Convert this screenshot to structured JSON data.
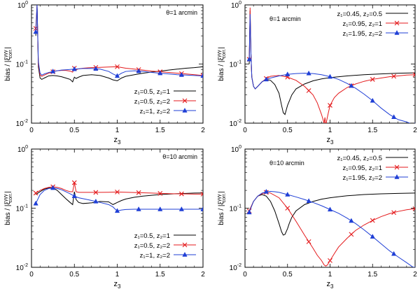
{
  "chart_data": [
    {
      "type": "line",
      "annotation": "θ=1 arcmin",
      "ylabel": "bias / |ξ",
      "ylabel_sup": "γγγ",
      "ylabel_sub": "corr.",
      "ylabel_end": "|",
      "xlabel": "z",
      "xlabel_sub": "3",
      "xlim": [
        0,
        2
      ],
      "ylim_log10": [
        -2,
        0
      ],
      "xticks": [
        "0",
        "0.5",
        "1",
        "1.5",
        "2"
      ],
      "yticks": [
        "10",
        "10",
        "10"
      ],
      "ytick_exps": [
        "-2",
        "-1",
        "0"
      ],
      "legend_position": "bottom-right",
      "series": [
        {
          "name": "z₁=0.5, z₂=1",
          "color": "#000000",
          "marker": "none",
          "x": [
            0.05,
            0.065,
            0.08,
            0.1,
            0.12,
            0.15,
            0.2,
            0.25,
            0.3,
            0.35,
            0.4,
            0.45,
            0.48,
            0.5,
            0.52,
            0.55,
            0.6,
            0.7,
            0.8,
            0.9,
            0.95,
            1.0,
            1.05,
            1.1,
            1.2,
            1.3,
            1.4,
            1.5,
            1.6,
            1.7,
            1.8,
            1.9,
            2.0
          ],
          "y": [
            0.3,
            1.0,
            0.09,
            0.058,
            0.055,
            0.058,
            0.063,
            0.064,
            0.063,
            0.061,
            0.058,
            0.055,
            0.05,
            0.06,
            0.057,
            0.06,
            0.064,
            0.066,
            0.064,
            0.058,
            0.054,
            0.052,
            0.058,
            0.062,
            0.066,
            0.07,
            0.073,
            0.076,
            0.079,
            0.082,
            0.085,
            0.087,
            0.09
          ]
        },
        {
          "name": "z₁=0.5, z₂=2",
          "color": "#e41a1c",
          "marker": "x",
          "x": [
            0.05,
            0.065,
            0.08,
            0.1,
            0.12,
            0.15,
            0.2,
            0.25,
            0.3,
            0.35,
            0.4,
            0.45,
            0.48,
            0.5,
            0.52,
            0.55,
            0.6,
            0.7,
            0.8,
            0.9,
            1.0,
            1.1,
            1.2,
            1.3,
            1.4,
            1.5,
            1.6,
            1.7,
            1.8,
            1.9,
            2.0
          ],
          "y": [
            0.4,
            1.0,
            0.1,
            0.065,
            0.062,
            0.065,
            0.07,
            0.074,
            0.077,
            0.078,
            0.078,
            0.076,
            0.073,
            0.085,
            0.08,
            0.083,
            0.085,
            0.087,
            0.088,
            0.089,
            0.09,
            0.085,
            0.082,
            0.079,
            0.076,
            0.074,
            0.072,
            0.07,
            0.068,
            0.066,
            0.064
          ]
        },
        {
          "name": "z₁=1, z₂=2",
          "color": "#1f3fd6",
          "marker": "triangle",
          "x": [
            0.05,
            0.065,
            0.08,
            0.1,
            0.12,
            0.15,
            0.2,
            0.25,
            0.3,
            0.35,
            0.4,
            0.45,
            0.5,
            0.55,
            0.6,
            0.7,
            0.8,
            0.9,
            0.95,
            1.0,
            1.05,
            1.1,
            1.2,
            1.3,
            1.4,
            1.5,
            1.6,
            1.7,
            1.8,
            1.9,
            2.0
          ],
          "y": [
            0.35,
            1.0,
            0.11,
            0.07,
            0.065,
            0.068,
            0.072,
            0.075,
            0.077,
            0.079,
            0.08,
            0.081,
            0.082,
            0.083,
            0.084,
            0.084,
            0.082,
            0.075,
            0.068,
            0.063,
            0.07,
            0.075,
            0.077,
            0.075,
            0.072,
            0.07,
            0.068,
            0.066,
            0.065,
            0.064,
            0.063
          ]
        }
      ]
    },
    {
      "type": "line",
      "annotation": "θ=1 arcmin",
      "ylabel": "bias / |ξ",
      "ylabel_sup": "γγγ",
      "ylabel_sub": "corr.",
      "ylabel_end": "|",
      "xlabel": "z",
      "xlabel_sub": "3",
      "xlim": [
        0,
        2
      ],
      "ylim_log10": [
        -2,
        0
      ],
      "xticks": [
        "0",
        "0.5",
        "1",
        "1.5",
        "2"
      ],
      "yticks": [
        "10",
        "10",
        "10"
      ],
      "ytick_exps": [
        "-2",
        "-1",
        "0"
      ],
      "legend_position": "top-right",
      "series": [
        {
          "name": "z₁=0.45, z₂=0.5",
          "color": "#000000",
          "marker": "none",
          "x": [
            0.05,
            0.06,
            0.07,
            0.08,
            0.1,
            0.12,
            0.15,
            0.2,
            0.25,
            0.3,
            0.35,
            0.4,
            0.43,
            0.45,
            0.47,
            0.5,
            0.55,
            0.6,
            0.7,
            0.8,
            0.9,
            1.0,
            1.2,
            1.4,
            1.6,
            1.8,
            2.0
          ],
          "y": [
            0.1,
            0.8,
            0.15,
            0.06,
            0.042,
            0.038,
            0.042,
            0.05,
            0.055,
            0.053,
            0.045,
            0.032,
            0.02,
            0.015,
            0.014,
            0.02,
            0.03,
            0.038,
            0.046,
            0.052,
            0.056,
            0.059,
            0.063,
            0.066,
            0.068,
            0.07,
            0.071
          ]
        },
        {
          "name": "z₁=0.95, z₂=1",
          "color": "#e41a1c",
          "marker": "x",
          "x": [
            0.05,
            0.06,
            0.07,
            0.08,
            0.1,
            0.12,
            0.15,
            0.2,
            0.25,
            0.3,
            0.4,
            0.5,
            0.6,
            0.7,
            0.8,
            0.85,
            0.9,
            0.93,
            0.94,
            0.95,
            0.96,
            0.98,
            1.0,
            1.05,
            1.1,
            1.2,
            1.3,
            1.4,
            1.5,
            1.6,
            1.7,
            1.8,
            1.9,
            2.0
          ],
          "y": [
            0.12,
            0.9,
            0.15,
            0.06,
            0.042,
            0.038,
            0.042,
            0.05,
            0.057,
            0.062,
            0.064,
            0.06,
            0.053,
            0.042,
            0.03,
            0.022,
            0.014,
            0.01,
            0.0125,
            0.009,
            0.011,
            0.015,
            0.02,
            0.027,
            0.032,
            0.04,
            0.046,
            0.051,
            0.055,
            0.058,
            0.061,
            0.063,
            0.065,
            0.066
          ]
        },
        {
          "name": "z₁=1.95, z₂=2",
          "color": "#1f3fd6",
          "marker": "triangle",
          "x": [
            0.05,
            0.06,
            0.07,
            0.08,
            0.1,
            0.12,
            0.15,
            0.2,
            0.25,
            0.3,
            0.4,
            0.5,
            0.6,
            0.7,
            0.8,
            0.9,
            1.0,
            1.1,
            1.2,
            1.3,
            1.4,
            1.5,
            1.6,
            1.7,
            1.8,
            1.9,
            1.95,
            2.0
          ],
          "y": [
            0.12,
            0.7,
            0.15,
            0.06,
            0.042,
            0.038,
            0.042,
            0.05,
            0.055,
            0.058,
            0.063,
            0.067,
            0.069,
            0.07,
            0.069,
            0.066,
            0.061,
            0.055,
            0.047,
            0.039,
            0.031,
            0.024,
            0.018,
            0.014,
            0.0115,
            0.0105,
            0.0098,
            0.0085
          ]
        }
      ]
    },
    {
      "type": "line",
      "annotation": "θ=10 arcmin",
      "ylabel": "bias / |ξ",
      "ylabel_sup": "γγγ",
      "ylabel_sub": "corr.",
      "ylabel_end": "|",
      "xlabel": "z",
      "xlabel_sub": "3",
      "xlim": [
        0,
        2
      ],
      "ylim_log10": [
        -2,
        0
      ],
      "xticks": [
        "0",
        "0.5",
        "1",
        "1.5",
        "2"
      ],
      "yticks": [
        "10",
        "10",
        "10"
      ],
      "ytick_exps": [
        "-2",
        "-1",
        "0"
      ],
      "legend_position": "bottom-right",
      "series": [
        {
          "name": "z₁=0.5, z₂=1",
          "color": "#000000",
          "marker": "none",
          "x": [
            0.05,
            0.1,
            0.15,
            0.2,
            0.25,
            0.3,
            0.35,
            0.4,
            0.45,
            0.48,
            0.5,
            0.52,
            0.55,
            0.6,
            0.7,
            0.8,
            0.9,
            0.95,
            1.0,
            1.05,
            1.1,
            1.2,
            1.3,
            1.4,
            1.5,
            1.6,
            1.7,
            1.8,
            1.9,
            2.0
          ],
          "y": [
            0.17,
            0.19,
            0.21,
            0.22,
            0.22,
            0.2,
            0.17,
            0.145,
            0.125,
            0.115,
            0.19,
            0.14,
            0.125,
            0.12,
            0.123,
            0.13,
            0.128,
            0.115,
            0.125,
            0.135,
            0.143,
            0.153,
            0.16,
            0.165,
            0.17,
            0.173,
            0.176,
            0.178,
            0.18,
            0.181
          ]
        },
        {
          "name": "z₁=0.5, z₂=2",
          "color": "#e41a1c",
          "marker": "x",
          "x": [
            0.05,
            0.1,
            0.15,
            0.2,
            0.25,
            0.3,
            0.35,
            0.4,
            0.45,
            0.48,
            0.5,
            0.52,
            0.55,
            0.6,
            0.7,
            0.8,
            0.9,
            1.0,
            1.1,
            1.2,
            1.3,
            1.4,
            1.5,
            1.6,
            1.7,
            1.8,
            1.9,
            2.0
          ],
          "y": [
            0.18,
            0.2,
            0.215,
            0.225,
            0.23,
            0.225,
            0.215,
            0.2,
            0.19,
            0.19,
            0.27,
            0.19,
            0.185,
            0.185,
            0.185,
            0.185,
            0.186,
            0.188,
            0.186,
            0.184,
            0.182,
            0.18,
            0.178,
            0.176,
            0.175,
            0.174,
            0.173,
            0.173
          ]
        },
        {
          "name": "z₁=1, z₂=2",
          "color": "#1f3fd6",
          "marker": "triangle",
          "x": [
            0.05,
            0.1,
            0.15,
            0.2,
            0.25,
            0.3,
            0.35,
            0.4,
            0.45,
            0.5,
            0.55,
            0.6,
            0.7,
            0.8,
            0.9,
            0.95,
            0.98,
            1.0,
            1.05,
            1.1,
            1.2,
            1.3,
            1.4,
            1.5,
            1.6,
            1.7,
            1.8,
            1.9,
            2.0
          ],
          "y": [
            0.12,
            0.17,
            0.2,
            0.215,
            0.22,
            0.215,
            0.205,
            0.19,
            0.175,
            0.16,
            0.15,
            0.145,
            0.135,
            0.125,
            0.115,
            0.105,
            0.095,
            0.09,
            0.093,
            0.095,
            0.096,
            0.096,
            0.096,
            0.096,
            0.096,
            0.096,
            0.096,
            0.096,
            0.096
          ]
        }
      ]
    },
    {
      "type": "line",
      "annotation": "θ=10 arcmin",
      "ylabel": "bias / |ξ",
      "ylabel_sup": "γγγ",
      "ylabel_sub": "corr.",
      "ylabel_end": "|",
      "xlabel": "z",
      "xlabel_sub": "3",
      "xlim": [
        0,
        2
      ],
      "ylim_log10": [
        -2,
        0
      ],
      "xticks": [
        "0",
        "0.5",
        "1",
        "1.5",
        "2"
      ],
      "yticks": [
        "10",
        "10",
        "10"
      ],
      "ytick_exps": [
        "-2",
        "-1",
        "0"
      ],
      "legend_position": "top-right",
      "series": [
        {
          "name": "z₁=0.45, z₂=0.5",
          "color": "#000000",
          "marker": "none",
          "x": [
            0.05,
            0.1,
            0.15,
            0.2,
            0.25,
            0.3,
            0.35,
            0.4,
            0.43,
            0.45,
            0.47,
            0.5,
            0.52,
            0.55,
            0.6,
            0.7,
            0.8,
            0.9,
            1.0,
            1.1,
            1.2,
            1.4,
            1.6,
            1.8,
            2.0
          ],
          "y": [
            0.09,
            0.13,
            0.16,
            0.17,
            0.16,
            0.13,
            0.09,
            0.055,
            0.04,
            0.035,
            0.036,
            0.045,
            0.055,
            0.07,
            0.09,
            0.115,
            0.13,
            0.142,
            0.15,
            0.156,
            0.162,
            0.17,
            0.175,
            0.178,
            0.18
          ]
        },
        {
          "name": "z₁=0.95, z₂=1",
          "color": "#e41a1c",
          "marker": "x",
          "x": [
            0.05,
            0.1,
            0.15,
            0.2,
            0.25,
            0.3,
            0.4,
            0.5,
            0.6,
            0.7,
            0.8,
            0.85,
            0.9,
            0.93,
            0.95,
            0.97,
            1.0,
            1.05,
            1.1,
            1.2,
            1.3,
            1.4,
            1.5,
            1.6,
            1.7,
            1.8,
            1.9,
            2.0
          ],
          "y": [
            0.09,
            0.13,
            0.16,
            0.175,
            0.185,
            0.18,
            0.15,
            0.1,
            0.06,
            0.035,
            0.021,
            0.016,
            0.013,
            0.011,
            0.0105,
            0.011,
            0.013,
            0.017,
            0.022,
            0.031,
            0.042,
            0.052,
            0.062,
            0.072,
            0.081,
            0.088,
            0.094,
            0.098
          ]
        },
        {
          "name": "z₁=1.95, z₂=2",
          "color": "#1f3fd6",
          "marker": "triangle",
          "x": [
            0.05,
            0.1,
            0.15,
            0.2,
            0.25,
            0.3,
            0.35,
            0.4,
            0.5,
            0.6,
            0.7,
            0.8,
            0.9,
            1.0,
            1.1,
            1.2,
            1.3,
            1.4,
            1.5,
            1.6,
            1.7,
            1.8,
            1.9,
            2.0
          ],
          "y": [
            0.085,
            0.13,
            0.16,
            0.18,
            0.19,
            0.192,
            0.19,
            0.185,
            0.17,
            0.155,
            0.14,
            0.125,
            0.11,
            0.095,
            0.082,
            0.068,
            0.055,
            0.043,
            0.033,
            0.025,
            0.019,
            0.015,
            0.012,
            0.0095
          ]
        }
      ]
    }
  ]
}
